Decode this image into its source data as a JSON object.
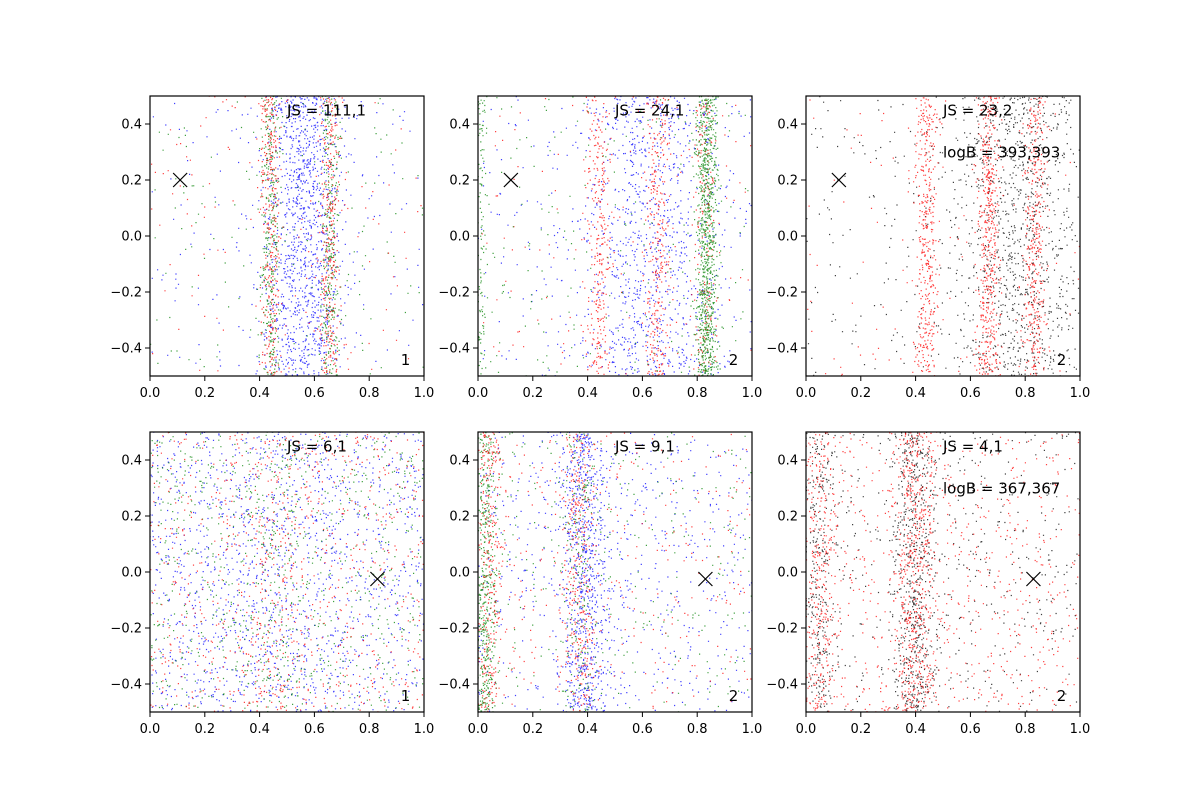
{
  "chart_data": [
    {
      "type": "scatter",
      "panel": "top-left",
      "xlim": [
        0.0,
        1.0
      ],
      "ylim": [
        -0.5,
        0.5
      ],
      "xticks": [
        "0.0",
        "0.2",
        "0.4",
        "0.6",
        "0.8",
        "1.0"
      ],
      "yticks": [
        "0.4",
        "0.2",
        "0.0",
        "−0.2",
        "−0.4"
      ],
      "js_text": "JS = 111,1",
      "logb_text": null,
      "panel_label": "1",
      "marker": {
        "x": 0.11,
        "y": 0.2
      },
      "series": [
        {
          "name": "blue",
          "color": "#0000ff",
          "clusters": [
            {
              "center": 0.56,
              "width": 0.07,
              "fraction": 0.85
            }
          ],
          "count": 1300
        },
        {
          "name": "green",
          "color": "#008000",
          "clusters": [
            {
              "center": 0.44,
              "width": 0.018,
              "fraction": 0.4
            },
            {
              "center": 0.655,
              "width": 0.018,
              "fraction": 0.4
            }
          ],
          "count": 750
        },
        {
          "name": "red",
          "color": "#ff0000",
          "clusters": [
            {
              "center": 0.44,
              "width": 0.018,
              "fraction": 0.4
            },
            {
              "center": 0.655,
              "width": 0.018,
              "fraction": 0.4
            }
          ],
          "count": 750
        }
      ]
    },
    {
      "type": "scatter",
      "panel": "top-middle",
      "xlim": [
        0.0,
        1.0
      ],
      "ylim": [
        -0.5,
        0.5
      ],
      "xticks": [
        "0.0",
        "0.2",
        "0.4",
        "0.6",
        "0.8",
        "1.0"
      ],
      "yticks": [
        "0.4",
        "0.2",
        "0.0",
        "−0.2",
        "−0.4"
      ],
      "js_text": "JS = 24,1",
      "logb_text": null,
      "panel_label": "2",
      "marker": {
        "x": 0.12,
        "y": 0.2
      },
      "series": [
        {
          "name": "blue",
          "color": "#0000ff",
          "clusters": [
            {
              "center": 0.62,
              "width": 0.13,
              "fraction": 0.8
            }
          ],
          "count": 1100
        },
        {
          "name": "red",
          "color": "#ff0000",
          "clusters": [
            {
              "center": 0.44,
              "width": 0.022,
              "fraction": 0.3
            },
            {
              "center": 0.655,
              "width": 0.022,
              "fraction": 0.35
            },
            {
              "center": 0.83,
              "width": 0.02,
              "fraction": 0.2
            }
          ],
          "count": 900
        },
        {
          "name": "green",
          "color": "#008000",
          "clusters": [
            {
              "center": 0.835,
              "width": 0.02,
              "fraction": 0.75
            },
            {
              "center": 0.01,
              "width": 0.01,
              "fraction": 0.1
            }
          ],
          "count": 1200
        }
      ]
    },
    {
      "type": "scatter",
      "panel": "top-right",
      "xlim": [
        0.0,
        1.0
      ],
      "ylim": [
        -0.5,
        0.5
      ],
      "xticks": [
        "0.0",
        "0.2",
        "0.4",
        "0.6",
        "0.8",
        "1.0"
      ],
      "yticks": [
        "0.4",
        "0.2",
        "0.0",
        "−0.2",
        "−0.4"
      ],
      "js_text": "JS = 23,2",
      "logb_text": "logB = 393,393",
      "panel_label": "2",
      "marker": {
        "x": 0.12,
        "y": 0.2
      },
      "series": [
        {
          "name": "black",
          "color": "#000000",
          "clusters": [
            {
              "center": 0.78,
              "width": 0.13,
              "fraction": 0.8
            }
          ],
          "count": 1200
        },
        {
          "name": "red",
          "color": "#ff0000",
          "clusters": [
            {
              "center": 0.44,
              "width": 0.02,
              "fraction": 0.28
            },
            {
              "center": 0.665,
              "width": 0.022,
              "fraction": 0.35
            },
            {
              "center": 0.835,
              "width": 0.02,
              "fraction": 0.27
            }
          ],
          "count": 1400
        }
      ]
    },
    {
      "type": "scatter",
      "panel": "bottom-left",
      "xlim": [
        0.0,
        1.0
      ],
      "ylim": [
        -0.5,
        0.5
      ],
      "xticks": [
        "0.0",
        "0.2",
        "0.4",
        "0.6",
        "0.8",
        "1.0"
      ],
      "yticks": [
        "0.4",
        "0.2",
        "0.0",
        "−0.2",
        "−0.4"
      ],
      "js_text": "JS = 6,1",
      "logb_text": null,
      "panel_label": "1",
      "marker": {
        "x": 0.83,
        "y": -0.025
      },
      "series": [
        {
          "name": "blue",
          "color": "#0000ff",
          "clusters": [
            {
              "center": 0.45,
              "width": 0.15,
              "fraction": 0.25
            }
          ],
          "count": 1500
        },
        {
          "name": "green",
          "color": "#008000",
          "clusters": [
            {
              "center": 0.45,
              "width": 0.06,
              "fraction": 0.2
            }
          ],
          "count": 900
        },
        {
          "name": "red",
          "color": "#ff0000",
          "clusters": [
            {
              "center": 0.45,
              "width": 0.06,
              "fraction": 0.2
            }
          ],
          "count": 900
        }
      ]
    },
    {
      "type": "scatter",
      "panel": "bottom-middle",
      "xlim": [
        0.0,
        1.0
      ],
      "ylim": [
        -0.5,
        0.5
      ],
      "xticks": [
        "0.0",
        "0.2",
        "0.4",
        "0.6",
        "0.8",
        "1.0"
      ],
      "yticks": [
        "0.4",
        "0.2",
        "0.0",
        "−0.2",
        "−0.4"
      ],
      "js_text": "JS = 9,1",
      "logb_text": null,
      "panel_label": "2",
      "marker": {
        "x": 0.83,
        "y": -0.025
      },
      "series": [
        {
          "name": "blue",
          "color": "#0000ff",
          "clusters": [
            {
              "center": 0.39,
              "width": 0.05,
              "fraction": 0.55
            }
          ],
          "count": 1300
        },
        {
          "name": "green",
          "color": "#008000",
          "clusters": [
            {
              "center": 0.03,
              "width": 0.02,
              "fraction": 0.5
            },
            {
              "center": 0.37,
              "width": 0.03,
              "fraction": 0.2
            }
          ],
          "count": 900
        },
        {
          "name": "red",
          "color": "#ff0000",
          "clusters": [
            {
              "center": 0.04,
              "width": 0.025,
              "fraction": 0.35
            },
            {
              "center": 0.37,
              "width": 0.03,
              "fraction": 0.3
            }
          ],
          "count": 900
        }
      ]
    },
    {
      "type": "scatter",
      "panel": "bottom-right",
      "xlim": [
        0.0,
        1.0
      ],
      "ylim": [
        -0.5,
        0.5
      ],
      "xticks": [
        "0.0",
        "0.2",
        "0.4",
        "0.6",
        "0.8",
        "1.0"
      ],
      "yticks": [
        "0.4",
        "0.2",
        "0.0",
        "−0.2",
        "−0.4"
      ],
      "js_text": "JS = 4,1",
      "logb_text": "logB = 367,367",
      "panel_label": "2",
      "marker": {
        "x": 0.83,
        "y": -0.025
      },
      "series": [
        {
          "name": "black",
          "color": "#000000",
          "clusters": [
            {
              "center": 0.4,
              "width": 0.04,
              "fraction": 0.45
            },
            {
              "center": 0.05,
              "width": 0.03,
              "fraction": 0.2
            }
          ],
          "count": 1300
        },
        {
          "name": "red",
          "color": "#ff0000",
          "clusters": [
            {
              "center": 0.4,
              "width": 0.04,
              "fraction": 0.35
            },
            {
              "center": 0.05,
              "width": 0.03,
              "fraction": 0.2
            }
          ],
          "count": 1500
        }
      ]
    }
  ]
}
